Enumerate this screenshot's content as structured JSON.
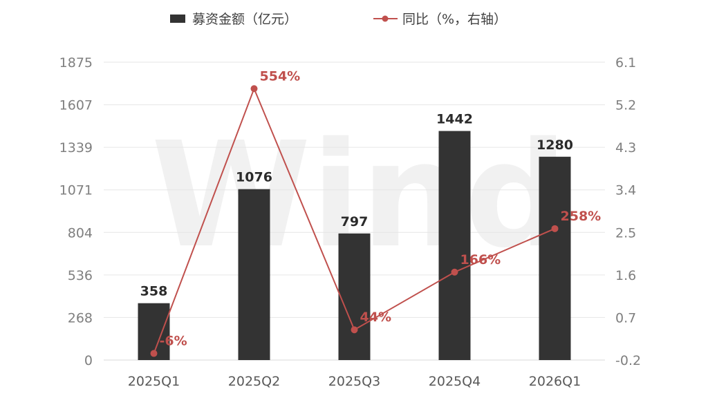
{
  "colors": {
    "bar": "#333333",
    "line": "#c0504d",
    "grid": "#e6e6e6"
  },
  "watermark": "Wind",
  "legend": {
    "bar_label": "募资金额（亿元）",
    "line_label": "同比（%，右轴）"
  },
  "chart_data": {
    "type": "bar+line",
    "categories": [
      "2025Q1",
      "2025Q2",
      "2025Q3",
      "2025Q4",
      "2026Q1"
    ],
    "series": [
      {
        "name": "募资金额（亿元）",
        "type": "bar",
        "axis": "left",
        "values": [
          358,
          1076,
          797,
          1442,
          1280
        ],
        "labels": [
          "358",
          "1076",
          "797",
          "1442",
          "1280"
        ]
      },
      {
        "name": "同比（%，右轴）",
        "type": "line",
        "axis": "right",
        "values": [
          -0.06,
          5.54,
          0.44,
          1.66,
          2.58
        ],
        "labels": [
          "-6%",
          "554%",
          "44%",
          "166%",
          "258%"
        ]
      }
    ],
    "y_left": {
      "min": 0,
      "max": 1875,
      "ticks": [
        "0",
        "268",
        "536",
        "804",
        "1071",
        "1339",
        "1607",
        "1875"
      ]
    },
    "y_right": {
      "min": -0.2,
      "max": 6.1,
      "ticks": [
        "-0.2",
        "0.7",
        "1.6",
        "2.5",
        "3.4",
        "4.3",
        "5.2",
        "6.1"
      ]
    },
    "legend_position": "top-center",
    "grid": true
  }
}
